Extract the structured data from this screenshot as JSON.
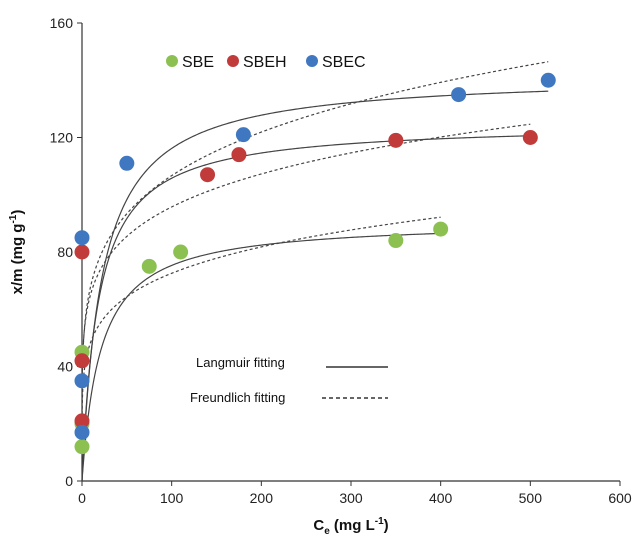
{
  "chart_data": {
    "type": "scatter",
    "xlabel": {
      "base": "C",
      "sub": "e",
      "rest": " (mg L",
      "sup": "-1",
      "close": ")"
    },
    "ylabel": {
      "base": "x/m  (mg g",
      "sup": "-1",
      "close": ")"
    },
    "xlim": [
      0,
      600
    ],
    "ylim": [
      0,
      160
    ],
    "x_ticks": [
      "0",
      "100",
      "200",
      "300",
      "400",
      "500",
      "600"
    ],
    "y_ticks": [
      "0",
      "40",
      "80",
      "120",
      "160"
    ],
    "grid": false,
    "legend_position": "top-left",
    "series": [
      {
        "name": "SBE",
        "color": "#8cc152",
        "points": [
          [
            0,
            12
          ],
          [
            0,
            20
          ],
          [
            0,
            45
          ],
          [
            75,
            75
          ],
          [
            110,
            80
          ],
          [
            350,
            84
          ],
          [
            400,
            88
          ]
        ],
        "langmuir": {
          "qm": 91,
          "kl": 0.048,
          "xmax": 400
        },
        "freundlich": {
          "kf": 32.8,
          "n": 5.8,
          "xmax": 400
        }
      },
      {
        "name": "SBEH",
        "color": "#c23b3b",
        "points": [
          [
            0,
            21
          ],
          [
            0,
            42
          ],
          [
            0,
            80
          ],
          [
            140,
            107
          ],
          [
            175,
            114
          ],
          [
            350,
            119
          ],
          [
            500,
            120
          ]
        ],
        "langmuir": {
          "qm": 125,
          "kl": 0.055,
          "xmax": 500
        },
        "freundlich": {
          "kf": 45,
          "n": 6.1,
          "xmax": 500
        }
      },
      {
        "name": "SBEC",
        "color": "#3f78c0",
        "points": [
          [
            0,
            17
          ],
          [
            0,
            35
          ],
          [
            0,
            85
          ],
          [
            50,
            111
          ],
          [
            180,
            121
          ],
          [
            420,
            135
          ],
          [
            520,
            140
          ]
        ],
        "langmuir": {
          "qm": 142,
          "kl": 0.045,
          "xmax": 520
        },
        "freundlich": {
          "kf": 44,
          "n": 5.2,
          "xmax": 520
        }
      }
    ],
    "fit_legend": [
      {
        "label": "Langmuir fitting",
        "style": "solid"
      },
      {
        "label": "Freundlich fitting",
        "style": "dashed"
      }
    ]
  }
}
